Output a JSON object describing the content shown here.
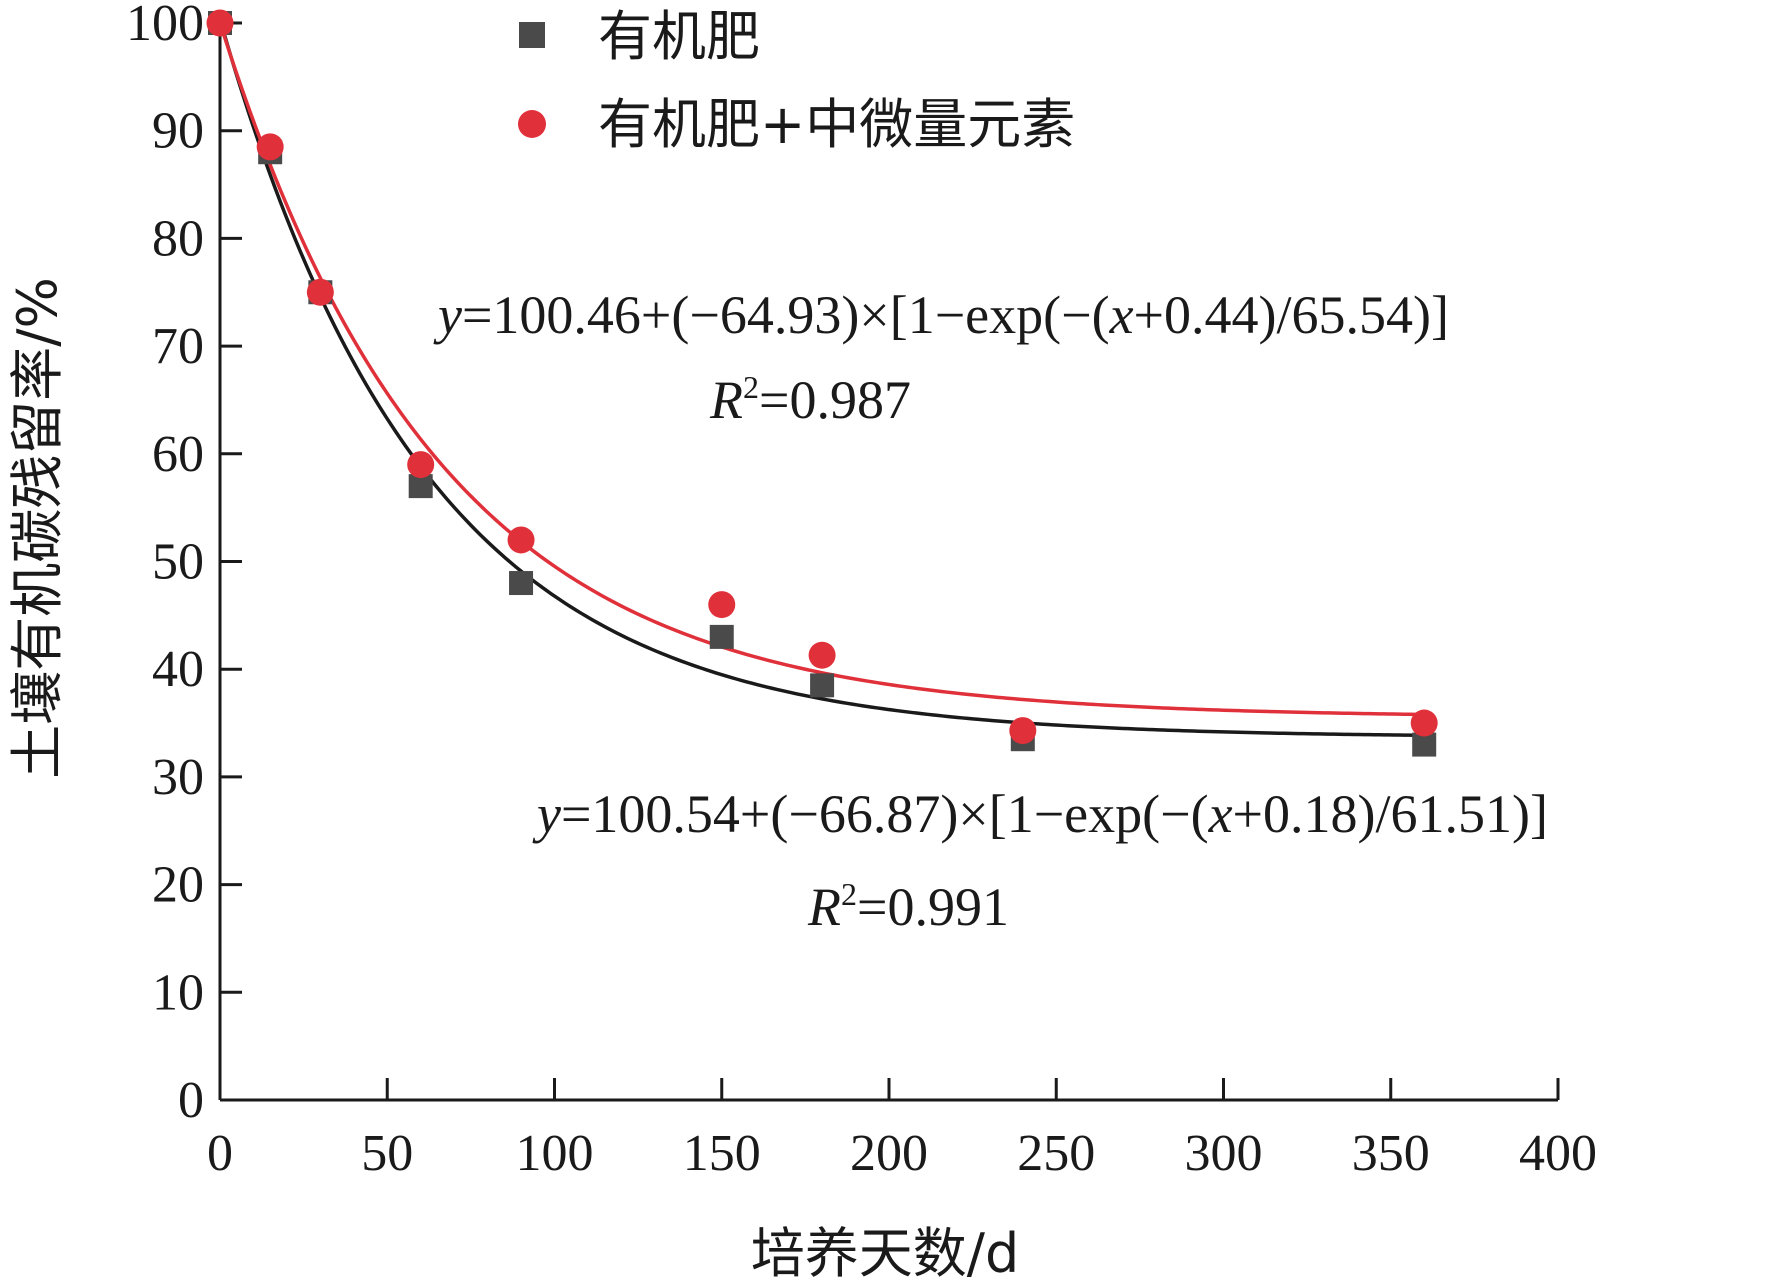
{
  "chart_data": {
    "type": "scatter",
    "xlabel": "培养天数/d",
    "ylabel": "土壤有机碳残留率/%",
    "xlim": [
      0,
      400
    ],
    "ylim": [
      0,
      100
    ],
    "xticks": [
      0,
      50,
      100,
      150,
      200,
      250,
      300,
      350,
      400
    ],
    "yticks": [
      0,
      10,
      20,
      30,
      40,
      50,
      60,
      70,
      80,
      90,
      100
    ],
    "grid": false,
    "legend_position": "top-center",
    "series": [
      {
        "name": "有机肥",
        "marker": "square",
        "color": "#4a4a4a",
        "curve_color": "#1a1a1a",
        "x": [
          0,
          15,
          30,
          60,
          90,
          150,
          180,
          240,
          360
        ],
        "y": [
          100,
          88,
          75,
          57,
          48,
          43,
          38.5,
          33.5,
          33
        ],
        "fit": {
          "a": 100.54,
          "b": -66.87,
          "c": 0.18,
          "d": 61.51
        }
      },
      {
        "name": "有机肥+中微量元素",
        "marker": "circle",
        "color": "#e0313b",
        "curve_color": "#e0313b",
        "x": [
          0,
          15,
          30,
          60,
          90,
          150,
          180,
          240,
          360
        ],
        "y": [
          100,
          88.5,
          75,
          59,
          52,
          46,
          41.3,
          34.3,
          35
        ],
        "fit": {
          "a": 100.46,
          "b": -64.93,
          "c": 0.44,
          "d": 65.54
        }
      }
    ],
    "annotations": [
      {
        "equation": {
          "y": "y",
          "pre": "=100.46+(−64.93)×[1−exp(−(",
          "x": "x",
          "post": "+0.44)/65.54)]"
        },
        "r2": {
          "r": "R",
          "sup": "2",
          "value": "=0.987"
        }
      },
      {
        "equation": {
          "y": "y",
          "pre": "=100.54+(−66.87)×[1−exp(−(",
          "x": "x",
          "post": "+0.18)/61.51)]"
        },
        "r2": {
          "r": "R",
          "sup": "2",
          "value": "=0.991"
        }
      }
    ]
  }
}
